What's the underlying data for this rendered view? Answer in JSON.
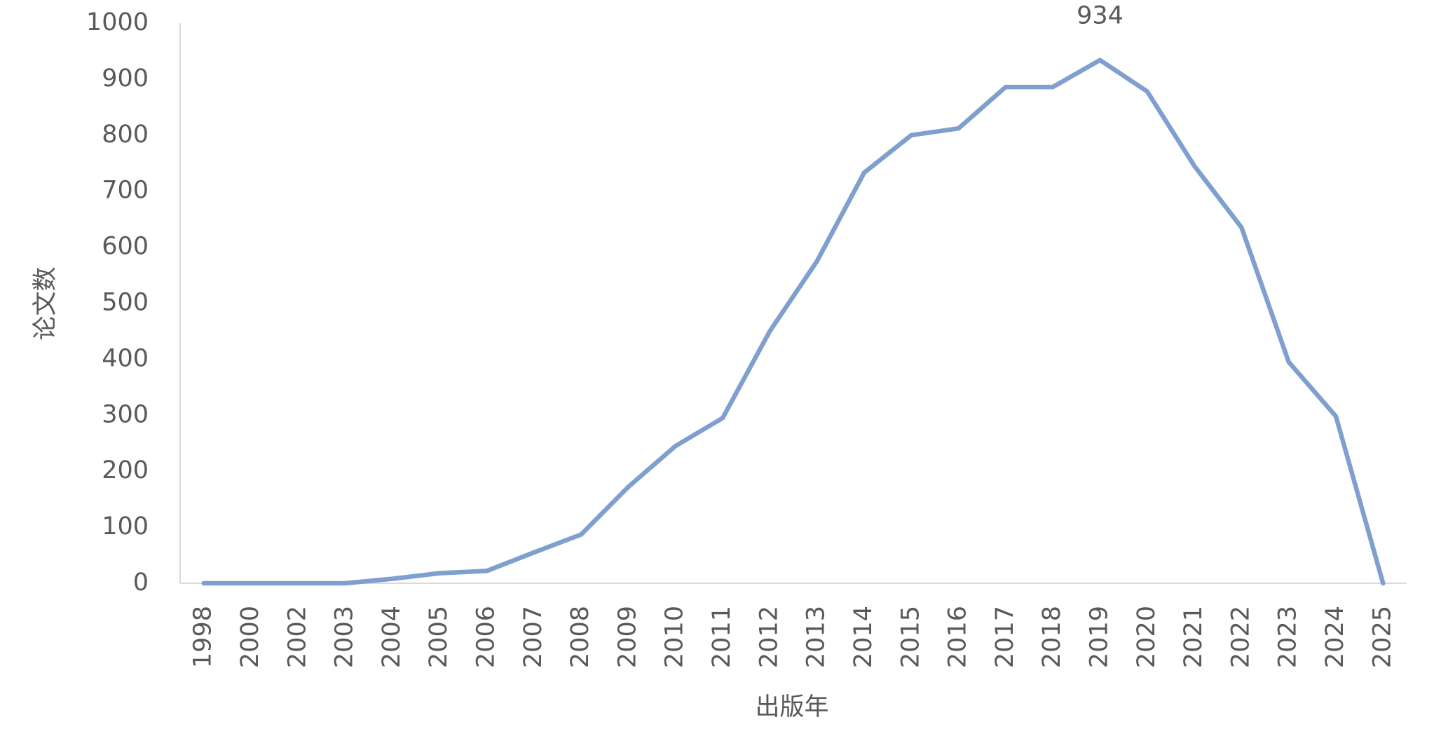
{
  "chart_data": {
    "type": "line",
    "x_label": "出版年",
    "y_label": "论文数",
    "categories": [
      "1998",
      "2000",
      "2002",
      "2003",
      "2004",
      "2005",
      "2006",
      "2007",
      "2008",
      "2009",
      "2010",
      "2011",
      "2012",
      "2013",
      "2014",
      "2015",
      "2016",
      "2017",
      "2018",
      "2019",
      "2020",
      "2021",
      "2022",
      "2023",
      "2024",
      "2025"
    ],
    "series": [
      {
        "color": "#7f9fcf",
        "values": [
          0,
          0,
          0,
          0,
          8,
          18,
          22,
          55,
          87,
          172,
          245,
          295,
          450,
          575,
          733,
          800,
          812,
          886,
          886,
          934,
          878,
          745,
          635,
          395,
          298,
          0
        ]
      }
    ],
    "data_labels": "max",
    "ylim": [
      0,
      1000
    ],
    "yticks": [
      0,
      100,
      200,
      300,
      400,
      500,
      600,
      700,
      800,
      900,
      1000
    ],
    "grid": false
  }
}
